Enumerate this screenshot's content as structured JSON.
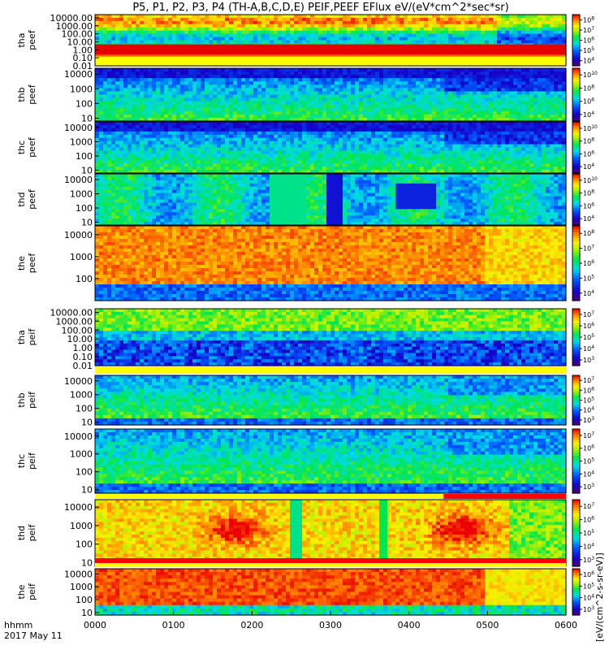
{
  "title": "P5, P1, P2, P3, P4 (TH-A,B,C,D,E) PEIF,PEEF EFlux eV/(eV*cm^2*sec*sr)",
  "footer": {
    "label_time": "hhmm",
    "label_date": "2017 May 11"
  },
  "colorbar_title": "[eV/(cm^2-s-sr-eV)]",
  "colors": {
    "frame": "#000000",
    "fill_line": "#ffff00",
    "bad_flag": "#ff0000"
  },
  "chart_data": {
    "type": "heatmap",
    "x_ticks": [
      "0000",
      "0100",
      "0200",
      "0300",
      "0400",
      "0500",
      "0600"
    ],
    "x_range": [
      0,
      6
    ],
    "x_unit": "hours UT",
    "colormap": "rainbow (purple-blue-cyan-green-yellow-red)",
    "panels": [
      {
        "probe": "tha",
        "species": "peef",
        "yticks": [
          "10000.00",
          "1000.00",
          "100.00",
          "10.00",
          "1.00",
          "0.10",
          "0.01"
        ],
        "ylog": [
          -2,
          4.4
        ],
        "cbar_ticks": [
          "10^8",
          "10^7",
          "10^6",
          "10^5",
          "10^4"
        ],
        "flag": "none"
      },
      {
        "probe": "thb",
        "species": "peef",
        "yticks": [
          "10000",
          "1000",
          "100",
          "10"
        ],
        "ylog": [
          0.8,
          4.4
        ],
        "cbar_ticks": [
          "10^10",
          "10^8",
          "10^6",
          "10^4"
        ],
        "flag": "none"
      },
      {
        "probe": "thc",
        "species": "peef",
        "yticks": [
          "10000",
          "1000",
          "100",
          "10"
        ],
        "ylog": [
          0.8,
          4.4
        ],
        "cbar_ticks": [
          "10^10",
          "10^8",
          "10^6",
          "10^4"
        ],
        "flag": "none"
      },
      {
        "probe": "thd",
        "species": "peef",
        "yticks": [
          "10000",
          "1000",
          "100",
          "10"
        ],
        "ylog": [
          0.8,
          4.4
        ],
        "cbar_ticks": [
          "10^10",
          "10^8",
          "10^6",
          "10^4"
        ],
        "flag": "none"
      },
      {
        "probe": "the",
        "species": "peef",
        "yticks": [
          "10000",
          "1000",
          "100"
        ],
        "ylog": [
          1.0,
          4.4
        ],
        "cbar_ticks": [
          "10^8",
          "10^7",
          "10^6",
          "10^5",
          "10^4"
        ],
        "flag": "none"
      },
      {
        "probe": "tha",
        "species": "peif",
        "yticks": [
          "10000.00",
          "1000.00",
          "100.00",
          "10.00",
          "1.00",
          "0.10",
          "0.01"
        ],
        "ylog": [
          -2,
          4.4
        ],
        "cbar_ticks": [
          "10^7",
          "10^6",
          "10^5",
          "10^4",
          "10^3"
        ],
        "flag": "yellow"
      },
      {
        "probe": "thb",
        "species": "peif",
        "yticks": [
          "10000",
          "1000",
          "100",
          "10"
        ],
        "ylog": [
          0.8,
          4.4
        ],
        "cbar_ticks": [
          "10^7",
          "10^6",
          "10^5",
          "10^4",
          "10^3"
        ],
        "flag": "yellow"
      },
      {
        "probe": "thc",
        "species": "peif",
        "yticks": [
          "10000",
          "1000",
          "100",
          "10"
        ],
        "ylog": [
          0.8,
          4.4
        ],
        "cbar_ticks": [
          "10^7",
          "10^6",
          "10^5",
          "10^4",
          "10^3"
        ],
        "flag": "yellow"
      },
      {
        "probe": "thd",
        "species": "peif",
        "yticks": [
          "10000",
          "1000",
          "100",
          "10"
        ],
        "ylog": [
          0.8,
          4.4
        ],
        "cbar_ticks": [
          "10^7",
          "10^6",
          "10^5",
          "10^4",
          "10^3"
        ],
        "flag": "yellow-red"
      },
      {
        "probe": "the",
        "species": "peif",
        "yticks": [
          "10000",
          "1000",
          "100",
          "10"
        ],
        "ylog": [
          0.8,
          4.4
        ],
        "cbar_ticks": [
          "10^6",
          "10^5",
          "10^4",
          "10^3"
        ],
        "flag": "red-yellow"
      }
    ]
  }
}
